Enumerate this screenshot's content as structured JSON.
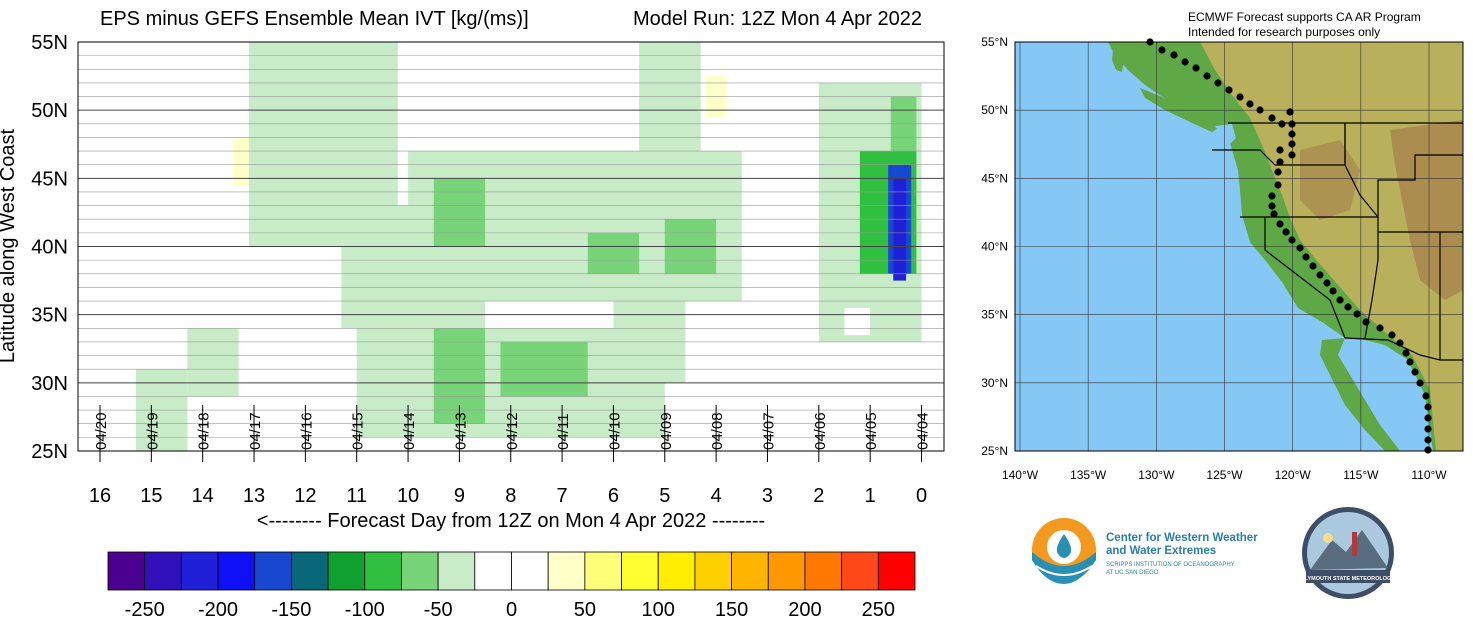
{
  "left_chart": {
    "title": "EPS minus GEFS Ensemble Mean IVT [kg/(ms)]",
    "model_run": "Model Run: 12Z Mon 4 Apr 2022",
    "ylabel": "Latitude along West Coast",
    "xlabel": "<-------- Forecast Day from 12Z on Mon 4 Apr 2022 --------"
  },
  "map": {
    "note_line1": "ECMWF Forecast supports CA AR Program",
    "note_line2": "Intended for research purposes only",
    "lat_labels": [
      "55°N",
      "50°N",
      "45°N",
      "40°N",
      "35°N",
      "30°N",
      "25°N"
    ],
    "lon_labels": [
      "140°W",
      "135°W",
      "130°W",
      "125°W",
      "120°W",
      "115°W",
      "110°W"
    ],
    "colors": {
      "ocean": "#86c8f5",
      "lowland": "#5ea845",
      "upland": "#b8b05a",
      "mountain": "#a8874f"
    }
  },
  "logos": {
    "cw3e_line1": "Center for Western Weather",
    "cw3e_line2": "and Water Extremes",
    "cw3e_line3": "SCRIPPS INSTITUTION OF OCEANOGRAPHY",
    "cw3e_line4": "AT UC SAN DIEGO",
    "psu_text": "PLYMOUTH STATE METEOROLOGY"
  },
  "chart_data": {
    "type": "heatmap",
    "title": "EPS minus GEFS Ensemble Mean IVT [kg/(ms)]",
    "xlabel": "<-------- Forecast Day from 12Z on Mon 4 Apr 2022 --------",
    "ylabel": "Latitude along West Coast",
    "x_ticks": [
      16,
      15,
      14,
      13,
      12,
      11,
      10,
      9,
      8,
      7,
      6,
      5,
      4,
      3,
      2,
      1,
      0
    ],
    "x_range": [
      16,
      0
    ],
    "date_ticks": [
      {
        "day": 16,
        "label": "04/20"
      },
      {
        "day": 15,
        "label": "04/19"
      },
      {
        "day": 14,
        "label": "04/18"
      },
      {
        "day": 13,
        "label": "04/17"
      },
      {
        "day": 12,
        "label": "04/16"
      },
      {
        "day": 11,
        "label": "04/15"
      },
      {
        "day": 10,
        "label": "04/14"
      },
      {
        "day": 9,
        "label": "04/13"
      },
      {
        "day": 8,
        "label": "04/12"
      },
      {
        "day": 7,
        "label": "04/11"
      },
      {
        "day": 6,
        "label": "04/10"
      },
      {
        "day": 5,
        "label": "04/09"
      },
      {
        "day": 4,
        "label": "04/08"
      },
      {
        "day": 3,
        "label": "04/07"
      },
      {
        "day": 2,
        "label": "04/06"
      },
      {
        "day": 1,
        "label": "04/05"
      },
      {
        "day": 0,
        "label": "04/04"
      }
    ],
    "y_ticks": [
      {
        "lat": 55,
        "label": "55N"
      },
      {
        "lat": 50,
        "label": "50N"
      },
      {
        "lat": 45,
        "label": "45N"
      },
      {
        "lat": 40,
        "label": "40N"
      },
      {
        "lat": 35,
        "label": "35N"
      },
      {
        "lat": 30,
        "label": "30N"
      },
      {
        "lat": 25,
        "label": "25N"
      }
    ],
    "y_range": [
      25,
      55
    ],
    "grid": true,
    "colorbar": {
      "ticks": [
        -250,
        -200,
        -150,
        -100,
        -50,
        0,
        50,
        100,
        150,
        200,
        250
      ],
      "colors": [
        "#4c0090",
        "#3010b8",
        "#2020d8",
        "#1010f8",
        "#1848d0",
        "#086878",
        "#10a030",
        "#30c040",
        "#78d478",
        "#c8ecc8",
        "#ffffff",
        "#ffffff",
        "#ffffc8",
        "#ffff78",
        "#ffff30",
        "#ffee00",
        "#ffd000",
        "#ffb400",
        "#ff9800",
        "#ff7800",
        "#ff4818",
        "#ff0000"
      ]
    },
    "regions": [
      {
        "x": [
          15.3,
          14.3
        ],
        "y": [
          25,
          31
        ],
        "value": -30
      },
      {
        "x": [
          14.3,
          13.3
        ],
        "y": [
          29,
          34
        ],
        "value": -30
      },
      {
        "x": [
          13.1,
          10.2
        ],
        "y": [
          40,
          55
        ],
        "value": -30
      },
      {
        "x": [
          11.3,
          8.5
        ],
        "y": [
          34,
          43
        ],
        "value": -30
      },
      {
        "x": [
          11.0,
          5.0
        ],
        "y": [
          26,
          34
        ],
        "value": -40
      },
      {
        "x": [
          10.0,
          3.5
        ],
        "y": [
          36,
          47
        ],
        "value": -35
      },
      {
        "x": [
          6.0,
          4.6
        ],
        "y": [
          30,
          39
        ],
        "value": -30
      },
      {
        "x": [
          9.5,
          8.5
        ],
        "y": [
          27,
          34
        ],
        "value": -75
      },
      {
        "x": [
          8.2,
          6.5
        ],
        "y": [
          29,
          33
        ],
        "value": -75
      },
      {
        "x": [
          6.5,
          5.5
        ],
        "y": [
          38,
          41
        ],
        "value": -75
      },
      {
        "x": [
          9.5,
          8.5
        ],
        "y": [
          40,
          45
        ],
        "value": -75
      },
      {
        "x": [
          5.0,
          4.0
        ],
        "y": [
          38,
          42
        ],
        "value": -75
      },
      {
        "x": [
          5.5,
          4.3
        ],
        "y": [
          44,
          56
        ],
        "value": -30
      },
      {
        "x": [
          2.0,
          0.0
        ],
        "y": [
          33,
          52
        ],
        "value": -35
      },
      {
        "x": [
          1.2,
          0.1
        ],
        "y": [
          38,
          47
        ],
        "value": -80
      },
      {
        "x": [
          0.6,
          0.1
        ],
        "y": [
          47,
          51
        ],
        "value": -75
      },
      {
        "x": [
          0.65,
          0.2
        ],
        "y": [
          38,
          46
        ],
        "value": -175
      },
      {
        "x": [
          0.55,
          0.3
        ],
        "y": [
          37.5,
          45
        ],
        "value": -210
      },
      {
        "x": [
          4.2,
          3.8
        ],
        "y": [
          49.5,
          52.5
        ],
        "value": 40
      },
      {
        "x": [
          3.1,
          2.9
        ],
        "y": [
          43,
          47
        ],
        "value": 20
      },
      {
        "x": [
          13.4,
          13.1
        ],
        "y": [
          44.5,
          48
        ],
        "value": 30
      },
      {
        "x": [
          1.5,
          1.0
        ],
        "y": [
          33.5,
          35.5
        ],
        "value": 20
      },
      {
        "x": [
          2.6,
          2.2
        ],
        "y": [
          52,
          53.5
        ],
        "value": 20
      }
    ]
  }
}
